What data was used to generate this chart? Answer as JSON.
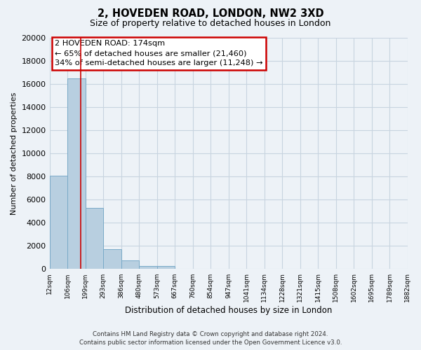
{
  "title": "2, HOVEDEN ROAD, LONDON, NW2 3XD",
  "subtitle": "Size of property relative to detached houses in London",
  "xlabel": "Distribution of detached houses by size in London",
  "ylabel": "Number of detached properties",
  "bar_color": "#b8cfe0",
  "bar_edge_color": "#7aaac8",
  "highlight_line_color": "#cc0000",
  "x_labels": [
    "12sqm",
    "106sqm",
    "199sqm",
    "293sqm",
    "386sqm",
    "480sqm",
    "573sqm",
    "667sqm",
    "760sqm",
    "854sqm",
    "947sqm",
    "1041sqm",
    "1134sqm",
    "1228sqm",
    "1321sqm",
    "1415sqm",
    "1508sqm",
    "1602sqm",
    "1695sqm",
    "1789sqm",
    "1882sqm"
  ],
  "bar_values": [
    8100,
    16500,
    5300,
    1750,
    750,
    275,
    275,
    0,
    0,
    0,
    0,
    0,
    0,
    0,
    0,
    0,
    0,
    0,
    0,
    0
  ],
  "ylim": [
    0,
    20000
  ],
  "yticks": [
    0,
    2000,
    4000,
    6000,
    8000,
    10000,
    12000,
    14000,
    16000,
    18000,
    20000
  ],
  "annotation_title": "2 HOVEDEN ROAD: 174sqm",
  "annotation_line1": "← 65% of detached houses are smaller (21,460)",
  "annotation_line2": "34% of semi-detached houses are larger (11,248) →",
  "annotation_box_color": "#ffffff",
  "annotation_box_edge": "#cc0000",
  "footer_line1": "Contains HM Land Registry data © Crown copyright and database right 2024.",
  "footer_line2": "Contains public sector information licensed under the Open Government Licence v3.0.",
  "background_color": "#edf2f7",
  "plot_background": "#edf2f7",
  "grid_color": "#c8d4e0"
}
